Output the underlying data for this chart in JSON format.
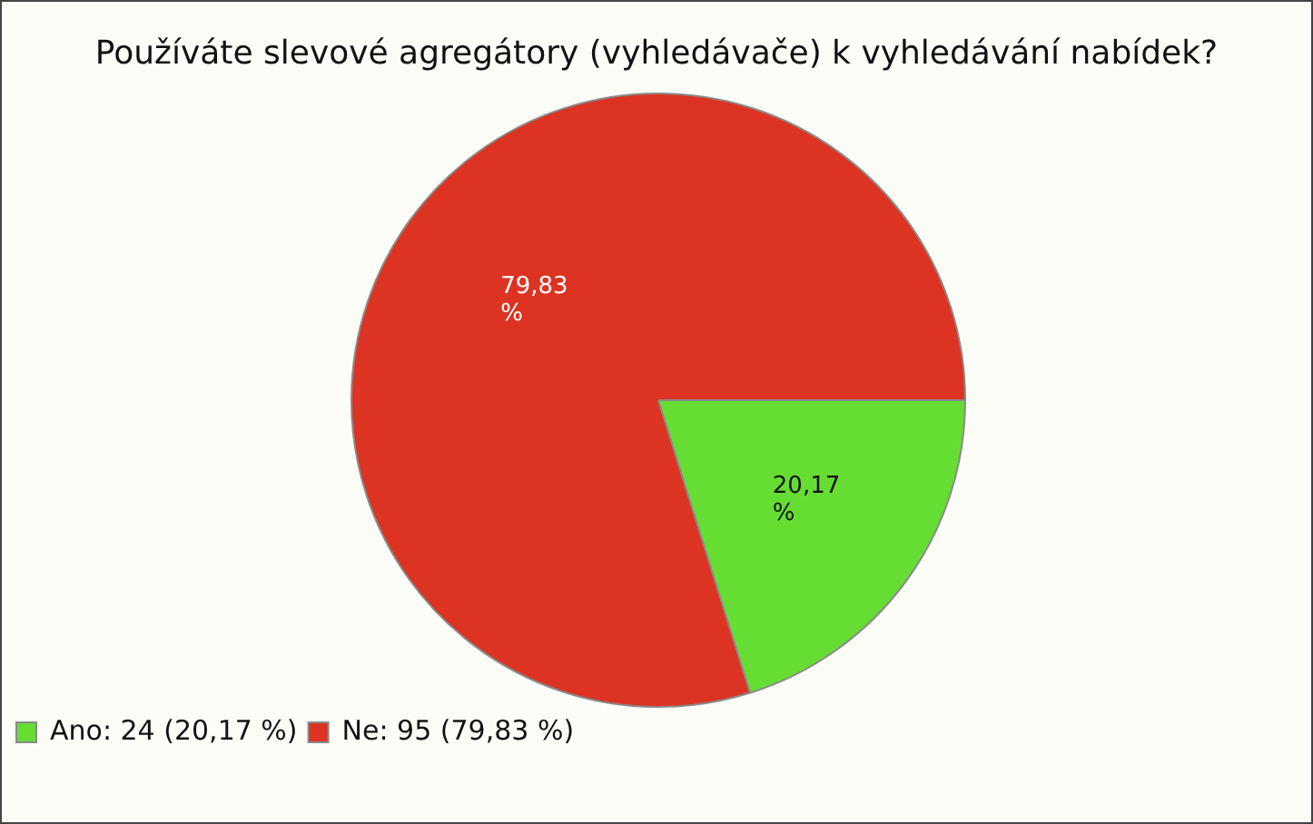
{
  "chart_data": {
    "type": "pie",
    "title": "Používáte slevové agregátory (vyhledávače) k vyhledávání nabídek?",
    "categories": [
      "Ano: 24 (20,17 %)",
      "Ne: 95 (79,83 %)"
    ],
    "values": [
      20.17,
      79.83
    ],
    "value_labels": [
      "20,17 %",
      "79,83 %"
    ],
    "colors": [
      "#66dd33",
      "#dd3322"
    ],
    "legend": "bottom left"
  }
}
